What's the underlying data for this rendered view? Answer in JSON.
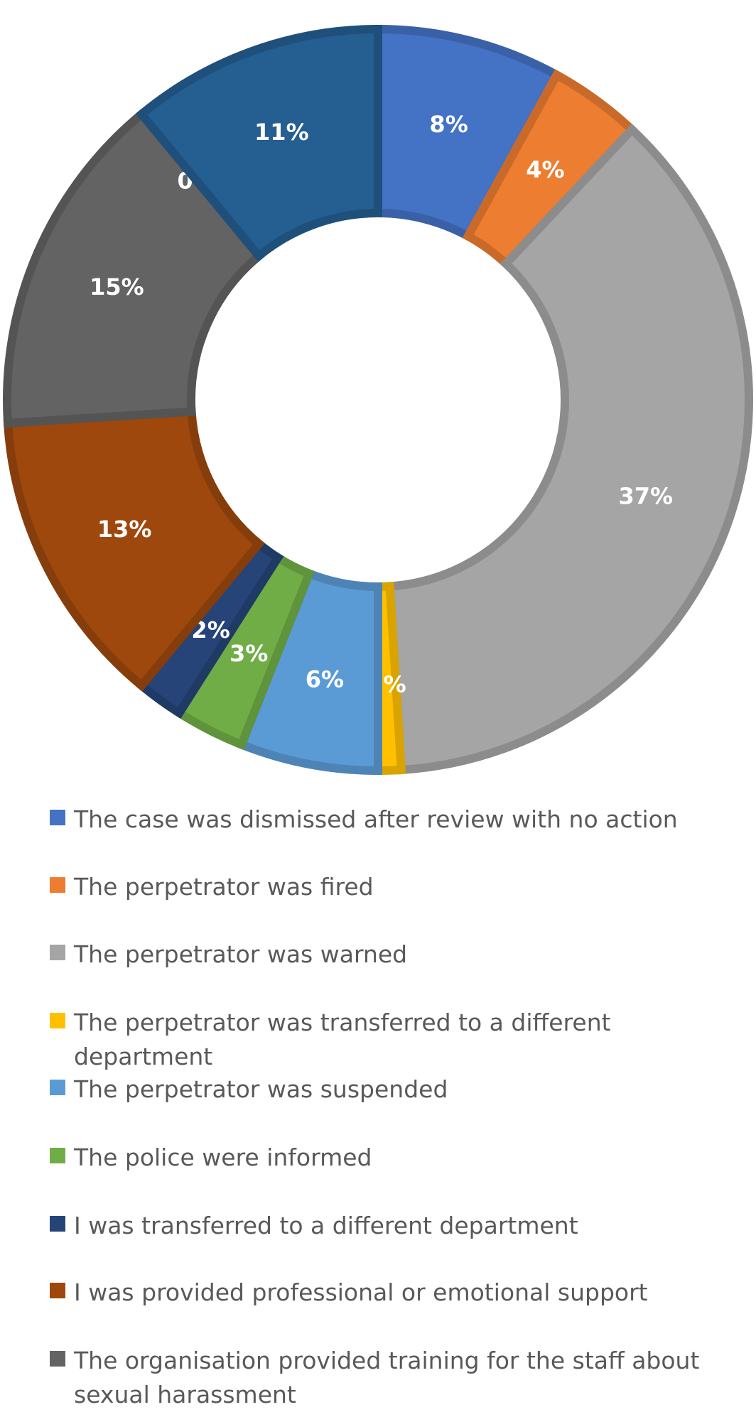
{
  "chart_data": {
    "type": "donut",
    "title": "",
    "slices": [
      {
        "label": "The case was dismissed after review with no action",
        "value": 8,
        "display": "8%",
        "color": "#4472C4"
      },
      {
        "label": "The perpetrator was fired",
        "value": 4,
        "display": "4%",
        "color": "#ED7D31"
      },
      {
        "label": "The perpetrator was warned",
        "value": 37,
        "display": "37%",
        "color": "#A5A5A5"
      },
      {
        "label": "The perpetrator was transferred to a different department",
        "value": 1,
        "display": "1%",
        "color": "#FFC000"
      },
      {
        "label": "The perpetrator was suspended",
        "value": 6,
        "display": "6%",
        "color": "#5B9BD5"
      },
      {
        "label": "The police were informed",
        "value": 3,
        "display": "3%",
        "color": "#70AD47"
      },
      {
        "label": "I was transferred to a different department",
        "value": 2,
        "display": "2%",
        "color": "#264478"
      },
      {
        "label": "I was provided professional or emotional support",
        "value": 13,
        "display": "13%",
        "color": "#9E480E"
      },
      {
        "label": "The organisation provided training for the staff about sexual harassment",
        "value": 15,
        "display": "15%",
        "color": "#636363"
      },
      {
        "label": "",
        "value": 0,
        "display": "0%",
        "color": "#997300"
      },
      {
        "label": "",
        "value": 11,
        "display": "11%",
        "color": "#255E91"
      }
    ],
    "legend_position": "bottom"
  }
}
